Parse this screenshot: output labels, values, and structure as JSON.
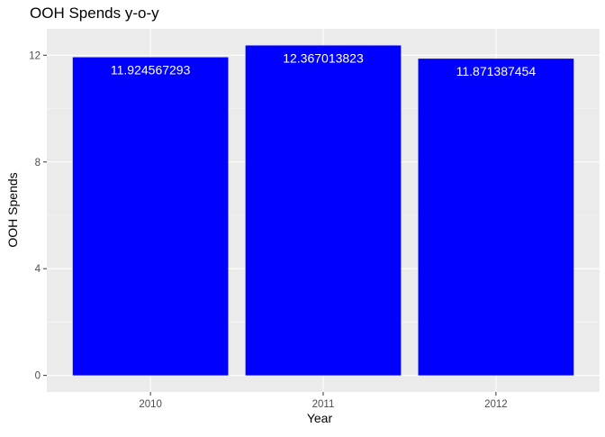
{
  "chart_data": {
    "type": "bar",
    "title": "OOH Spends y-o-y",
    "xlabel": "Year",
    "ylabel": "OOH Spends",
    "categories": [
      "2010",
      "2011",
      "2012"
    ],
    "values": [
      11.924567293,
      12.367013823,
      11.871387454
    ],
    "data_labels": [
      "11.924567293",
      "12.367013823",
      "11.871387454"
    ],
    "y_ticks": [
      0,
      4,
      8,
      12
    ],
    "y_tick_labels": [
      "0",
      "4",
      "8",
      "12"
    ],
    "ylim": [
      -0.62,
      12.99
    ],
    "grid": true,
    "legend": "none",
    "colors": {
      "bar": "#0000ff",
      "panel": "#ebebeb",
      "grid_major": "#ffffff",
      "data_label": "#ffffff",
      "axis_text": "#4d4d4d",
      "title": "#000000"
    }
  }
}
